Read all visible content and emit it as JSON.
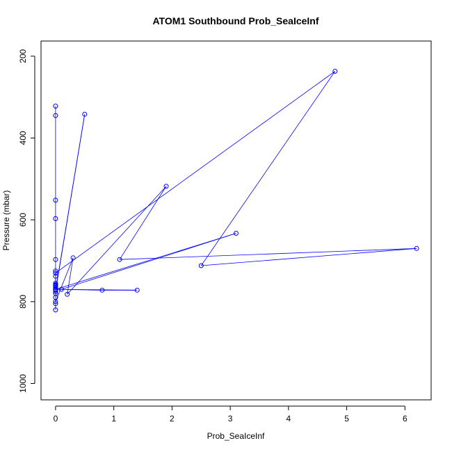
{
  "chart_data": {
    "type": "line",
    "title": "ATOM1 Southbound Prob_SeaIceInf",
    "xlabel": "Prob_SeaIceInf",
    "ylabel": "Pressure (mbar)",
    "xlim": [
      -0.25,
      6.45
    ],
    "ylim": [
      1040,
      163
    ],
    "y_axis_inverted": true,
    "grid": false,
    "legend": "none",
    "x_ticks": [
      0,
      1,
      2,
      3,
      4,
      5,
      6
    ],
    "y_ticks": [
      200,
      400,
      600,
      800,
      1000
    ],
    "series_color": "#0000ff",
    "series": [
      {
        "x": [
          0,
          0,
          0,
          0,
          0,
          0,
          0,
          0,
          0,
          0,
          0.5,
          0,
          0,
          0,
          0,
          0.3,
          0.2,
          1.9,
          1.1,
          6.2,
          2.5,
          4.8,
          0,
          0,
          0,
          0,
          0.8,
          1.4,
          0,
          0.1,
          3.1,
          0,
          0,
          0,
          0,
          0,
          0,
          0
        ],
        "y": [
          322,
          345,
          552,
          597,
          697,
          725,
          758,
          762,
          770,
          772,
          342,
          775,
          780,
          790,
          800,
          693,
          782,
          518,
          697,
          670,
          712,
          237,
          730,
          738,
          760,
          770,
          772,
          772,
          770,
          770,
          633,
          770,
          755,
          760,
          765,
          770,
          805,
          820
        ]
      }
    ]
  }
}
